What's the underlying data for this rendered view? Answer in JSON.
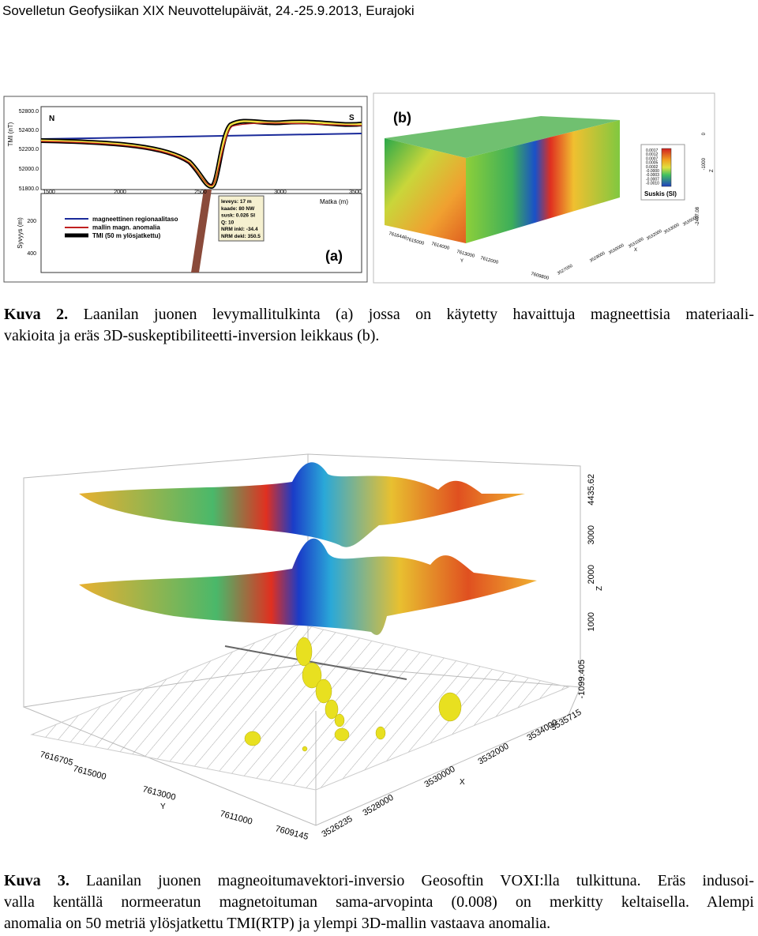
{
  "header": {
    "title": "Sovelletun Geofysiikan XIX Neuvottelupäivät, 24.-25.9.2013, Eurajoki"
  },
  "figure_a": {
    "panel_label": "(a)",
    "north": "N",
    "south": "S",
    "tmi_axis_label": "TMI (nT)",
    "tmi_ticks": [
      "52800.0",
      "52400.0",
      "52200.0",
      "52000.0",
      "51800.0"
    ],
    "distance_ticks": [
      "1500",
      "2000",
      "2500",
      "3000",
      "3500"
    ],
    "distance_label": "Matka (m)",
    "depth_label": "Syvyys (m)",
    "depth_ticks": [
      "200",
      "400"
    ],
    "legend": [
      "magneettinen regionaalitaso",
      "mallin magn. anomalia",
      "TMI (50 m ylösjatkettu)"
    ],
    "info": [
      "leveys:  17 m",
      "kaade:  80 NW",
      "susk:  0.026 SI",
      "Q:  10",
      "NRM inkl: -34.4",
      "NRM dekl: 350.5"
    ]
  },
  "figure_b": {
    "panel_label": "(b)",
    "colorbar_ticks": [
      "0.0017",
      "0.0012",
      "0.0007",
      "0.0005",
      "0.0002",
      "-0.0000",
      "-0.0003",
      "-0.0007",
      "-0.0010"
    ],
    "colorbar_label": "Suskis (SI)",
    "y_ticks": [
      "7616446",
      "7615000",
      "7614000",
      "7613000",
      "7612000",
      "7609800"
    ],
    "y_label": "Y",
    "x_ticks": [
      "3527050",
      "3529000",
      "3530000",
      "3531000",
      "3532000",
      "3533000",
      "3535000"
    ],
    "x_label": "X",
    "z_ticks": [
      "0",
      "-1000",
      "-2407.08"
    ],
    "z_label": "Z"
  },
  "caption_2": {
    "label": "Kuva 2.",
    "lines": [
      "Laanilan juonen levymallitulkinta (a) jossa on käytetty havaittuja magneettisia materiaali-",
      "vakioita ja eräs 3D-suskeptibiliteetti-inversion leikkaus (b)."
    ]
  },
  "figure_3": {
    "z_ticks": [
      "4435.62",
      "3000",
      "2000",
      "1000",
      "-1099.405"
    ],
    "z_label": "Z",
    "y_ticks": [
      "7616705",
      "7615000",
      "7613000",
      "7611000",
      "7609145"
    ],
    "y_label": "Y",
    "x_ticks": [
      "3526235",
      "3528000",
      "3530000",
      "3532000",
      "3534000",
      "3535715"
    ],
    "x_label": "X"
  },
  "caption_3": {
    "label": "Kuva 3.",
    "lines": [
      "Laanilan juonen magneoitumavektori-inversio Geosoftin VOXI:lla tulkittuna. Eräs indusoi-",
      "valla kentällä normeeratun magnetoituman sama-arvopinta (0.008) on merkitty keltaisella. Alempi",
      "anomalia on 50 metriä ylösjatkettu TMI(RTP) ja ylempi 3D-mallin vastaava anomalia."
    ]
  }
}
